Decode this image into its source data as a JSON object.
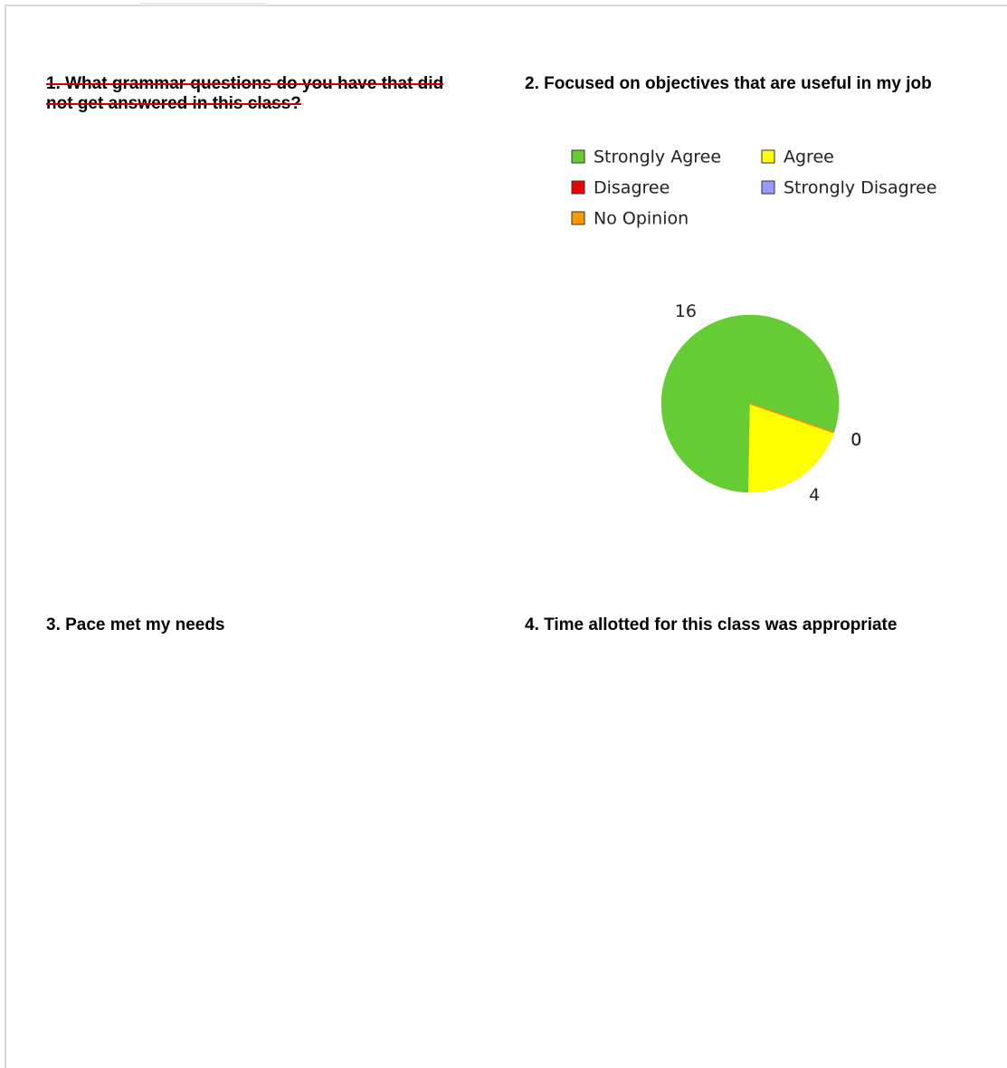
{
  "questions": [
    {
      "title": "1. What grammar questions do you have that did not get answered in this class?"
    },
    {
      "title": "2. Focused on objectives that are useful in my job"
    },
    {
      "title": "3. Pace met my needs"
    },
    {
      "title": "4. Time allotted for this class was appropriate"
    }
  ],
  "chart_data": {
    "type": "pie",
    "categories": [
      "Strongly Agree",
      "Agree",
      "Disagree",
      "Strongly Disagree",
      "No Opinion"
    ],
    "values": [
      16,
      4,
      0,
      0,
      0
    ],
    "colors": [
      "#66cc33",
      "#ffff00",
      "#ee0000",
      "#9999ff",
      "#ff9900"
    ]
  }
}
